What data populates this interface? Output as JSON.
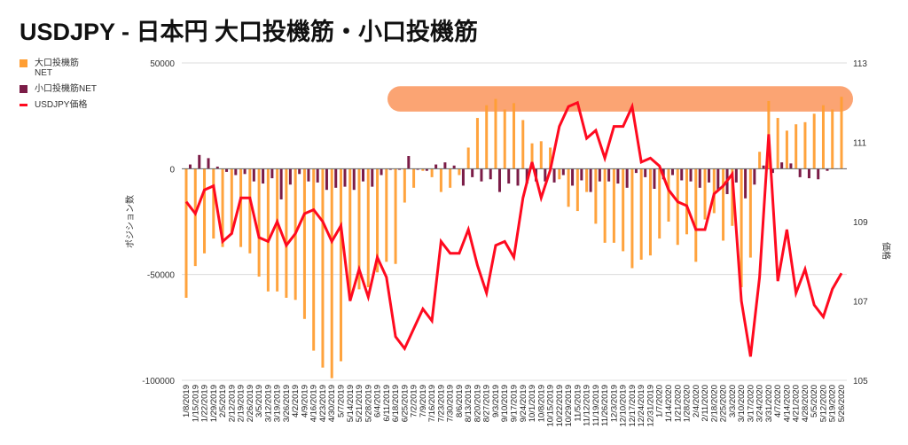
{
  "title": "USDJPY - 日本円 大口投機筋・小口投機筋",
  "chart_data": {
    "type": "bar+line",
    "title": "USDJPY - 日本円 大口投機筋・小口投機筋",
    "ylabel_left": "ポジション数",
    "ylabel_right": "価格",
    "ylim_left": [
      -100000,
      50000
    ],
    "yticks_left": [
      "50000",
      "0",
      "-50000",
      "-100000"
    ],
    "ylim_right": [
      105,
      113
    ],
    "yticks_right": [
      "113",
      "111",
      "109",
      "107",
      "105"
    ],
    "grid": true,
    "legend_position": "top-left",
    "highlight_band": {
      "y_left_from": 27000,
      "y_left_to": 39000,
      "color": "#fb9a64"
    },
    "colors": {
      "large": "#ff9e33",
      "small": "#7b1c47",
      "price": "#ff0a1f"
    },
    "categories": [
      "1/8/2019",
      "1/15/2019",
      "1/22/2019",
      "1/29/2019",
      "2/5/2019",
      "2/12/2019",
      "2/19/2019",
      "2/26/2019",
      "3/5/2019",
      "3/12/2019",
      "3/19/2019",
      "3/26/2019",
      "4/2/2019",
      "4/9/2019",
      "4/16/2019",
      "4/23/2019",
      "4/30/2019",
      "5/7/2019",
      "5/14/2019",
      "5/21/2019",
      "5/28/2019",
      "6/4/2019",
      "6/11/2019",
      "6/18/2019",
      "6/25/2019",
      "7/2/2019",
      "7/9/2019",
      "7/16/2019",
      "7/23/2019",
      "7/30/2019",
      "8/6/2019",
      "8/13/2019",
      "8/20/2019",
      "8/27/2019",
      "9/3/2019",
      "9/10/2019",
      "9/17/2019",
      "9/24/2019",
      "10/1/2019",
      "10/8/2019",
      "10/15/2019",
      "10/22/2019",
      "10/29/2019",
      "11/5/2019",
      "11/12/2019",
      "11/19/2019",
      "11/26/2019",
      "12/3/2019",
      "12/10/2019",
      "12/17/2019",
      "12/24/2019",
      "12/31/2019",
      "1/7/2020",
      "1/14/2020",
      "1/21/2020",
      "1/28/2020",
      "2/4/2020",
      "2/11/2020",
      "2/18/2020",
      "2/25/2020",
      "3/3/2020",
      "3/10/2020",
      "3/17/2020",
      "3/24/2020",
      "3/31/2020",
      "4/7/2020",
      "4/14/2020",
      "4/21/2020",
      "4/28/2020",
      "5/5/2020",
      "5/12/2020",
      "5/19/2020",
      "5/26/2020"
    ],
    "series": [
      {
        "name": "大口投機筋NET",
        "legend_label": "大口投機筋\nNET",
        "type": "bar",
        "axis": "left",
        "values": [
          -61000,
          -46000,
          -40000,
          -33000,
          -37000,
          -31000,
          -37000,
          -40000,
          -51000,
          -58000,
          -58000,
          -61000,
          -62000,
          -71000,
          -86000,
          -94000,
          -99000,
          -91000,
          -60000,
          -57000,
          -56000,
          -49000,
          -44000,
          -45000,
          -16000,
          -9000,
          -1000,
          -4000,
          -11000,
          -9000,
          -3000,
          10000,
          24000,
          30000,
          33000,
          28000,
          31000,
          23000,
          12000,
          13000,
          10000,
          -5000,
          -18000,
          -20000,
          -11000,
          -26000,
          -35000,
          -35000,
          -39000,
          -47000,
          -43000,
          -41000,
          -33000,
          -25000,
          -36000,
          -31000,
          -44000,
          -24000,
          -21000,
          -34000,
          -27000,
          -56000,
          -42000,
          8000,
          32000,
          24000,
          18000,
          21000,
          22000,
          26000,
          30000,
          28000,
          34000
        ]
      },
      {
        "name": "小口投機筋NET",
        "type": "bar",
        "axis": "left",
        "values": [
          2000,
          6500,
          5000,
          1000,
          -1500,
          -3000,
          -2500,
          -6000,
          -7000,
          -4500,
          -14500,
          -7500,
          -2500,
          -6000,
          -6500,
          -10000,
          -9000,
          -8500,
          -10000,
          -6000,
          -8500,
          -3000,
          -500,
          -500,
          6000,
          -500,
          -1000,
          2000,
          3000,
          1500,
          -8000,
          -4000,
          -6000,
          -5000,
          -11000,
          -7000,
          -8000,
          -7000,
          -6000,
          -6000,
          -6500,
          -3000,
          -8000,
          -5500,
          -11000,
          -6000,
          -6000,
          -7000,
          -9000,
          -2000,
          -4000,
          -9500,
          -5000,
          -3000,
          -5500,
          -6000,
          -9000,
          -6500,
          -10000,
          -12000,
          -6500,
          -14000,
          -7500,
          1500,
          -2000,
          3000,
          2500,
          -4000,
          -4500,
          -5000,
          -1000,
          0,
          0
        ]
      },
      {
        "name": "USDJPY価格",
        "type": "line",
        "axis": "right",
        "values": [
          109.5,
          109.2,
          109.8,
          109.9,
          108.5,
          108.7,
          109.6,
          109.6,
          108.6,
          108.5,
          109.0,
          108.4,
          108.7,
          109.2,
          109.3,
          109.0,
          108.5,
          108.9,
          107.0,
          107.8,
          107.1,
          108.1,
          107.6,
          106.1,
          105.8,
          106.3,
          106.8,
          106.5,
          108.5,
          108.2,
          108.2,
          108.8,
          107.9,
          107.2,
          108.4,
          108.5,
          108.1,
          109.6,
          110.5,
          109.6,
          110.3,
          111.4,
          111.9,
          112.0,
          111.1,
          111.3,
          110.6,
          111.4,
          111.4,
          111.9,
          110.5,
          110.6,
          110.4,
          109.8,
          109.5,
          109.4,
          108.8,
          108.8,
          109.7,
          109.9,
          110.2,
          107.0,
          105.6,
          107.6,
          111.2,
          107.5,
          108.8,
          107.2,
          107.8,
          106.9,
          106.6,
          107.3,
          107.7
        ]
      }
    ]
  },
  "legend": [
    {
      "label": "大口投機筋\nNET",
      "color": "#ff9e33"
    },
    {
      "label": "小口投機筋NET",
      "color": "#7b1c47"
    },
    {
      "label": "USDJPY価格",
      "color": "#ff0a1f"
    }
  ]
}
